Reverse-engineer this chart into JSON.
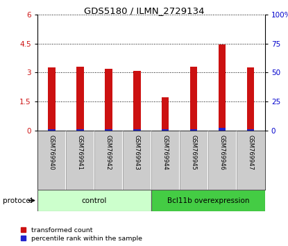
{
  "title": "GDS5180 / ILMN_2729134",
  "samples": [
    "GSM769940",
    "GSM769941",
    "GSM769942",
    "GSM769943",
    "GSM769944",
    "GSM769945",
    "GSM769946",
    "GSM769947"
  ],
  "red_values": [
    3.27,
    3.31,
    3.19,
    3.08,
    1.72,
    3.32,
    4.44,
    3.27
  ],
  "blue_values": [
    0.05,
    0.06,
    0.07,
    0.06,
    0.06,
    0.06,
    0.12,
    0.05
  ],
  "left_ylim": [
    0,
    6
  ],
  "right_ylim": [
    0,
    100
  ],
  "left_yticks": [
    0,
    1.5,
    3,
    4.5,
    6
  ],
  "right_yticks": [
    0,
    25,
    50,
    75,
    100
  ],
  "left_ytick_labels": [
    "0",
    "1.5",
    "3",
    "4.5",
    "6"
  ],
  "right_ytick_labels": [
    "0",
    "25",
    "50",
    "75",
    "100%"
  ],
  "groups": [
    {
      "label": "control",
      "span": [
        0,
        4
      ],
      "color": "#ccffcc"
    },
    {
      "label": "Bcl11b overexpression",
      "span": [
        4,
        8
      ],
      "color": "#44cc44"
    }
  ],
  "protocol_label": "protocol",
  "red_color": "#cc1111",
  "blue_color": "#2222cc",
  "bar_width": 0.25,
  "background_color": "#ffffff",
  "grid_color": "#000000",
  "tick_label_color_left": "#cc1111",
  "tick_label_color_right": "#0000cc",
  "legend_red": "transformed count",
  "legend_blue": "percentile rank within the sample",
  "sample_box_color": "#cccccc",
  "title_fontsize": 9.5
}
